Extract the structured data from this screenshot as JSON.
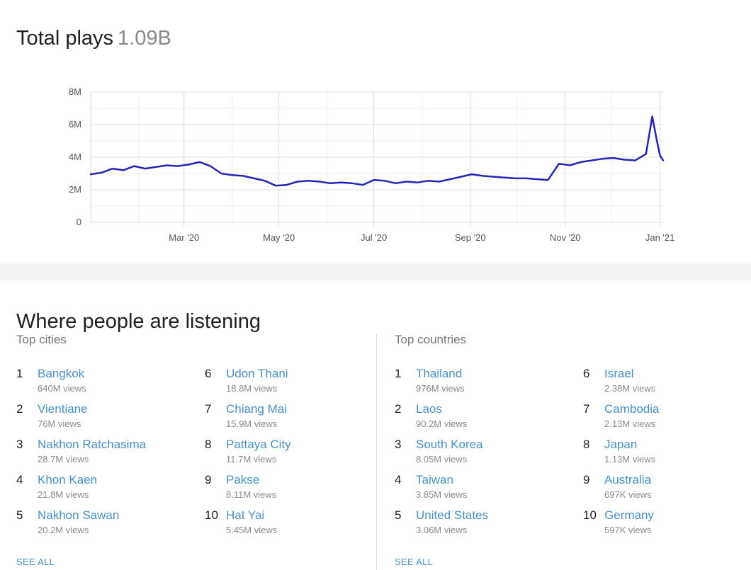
{
  "plays": {
    "label": "Total plays",
    "value": "1.09B"
  },
  "chart_data": {
    "type": "line",
    "y_ticks": [
      "0",
      "2M",
      "4M",
      "6M",
      "8M"
    ],
    "ylim": [
      0,
      8000000
    ],
    "x_ticks": [
      "Mar '20",
      "May '20",
      "Jul '20",
      "Sep '20",
      "Nov '20",
      "Jan '21"
    ],
    "x_tick_dates": [
      "2020-03-01",
      "2020-05-01",
      "2020-07-01",
      "2020-09-01",
      "2020-11-01",
      "2021-01-01"
    ],
    "xlim": [
      "2020-01-01",
      "2021-01-03"
    ],
    "color": "#2424b8",
    "grid": true,
    "series": [
      {
        "x": [
          "2020-01-01",
          "2020-01-08",
          "2020-01-15",
          "2020-01-22",
          "2020-01-29",
          "2020-02-05",
          "2020-02-12",
          "2020-02-19",
          "2020-02-26",
          "2020-03-04",
          "2020-03-11",
          "2020-03-18",
          "2020-03-25",
          "2020-04-01",
          "2020-04-08",
          "2020-04-15",
          "2020-04-22",
          "2020-04-29",
          "2020-05-06",
          "2020-05-13",
          "2020-05-20",
          "2020-05-27",
          "2020-06-03",
          "2020-06-10",
          "2020-06-17",
          "2020-06-24",
          "2020-07-01",
          "2020-07-08",
          "2020-07-15",
          "2020-07-22",
          "2020-07-29",
          "2020-08-05",
          "2020-08-12",
          "2020-08-19",
          "2020-08-26",
          "2020-09-02",
          "2020-09-09",
          "2020-09-16",
          "2020-09-23",
          "2020-09-30",
          "2020-10-07",
          "2020-10-14",
          "2020-10-21",
          "2020-10-28",
          "2020-11-04",
          "2020-11-11",
          "2020-11-18",
          "2020-11-25",
          "2020-12-02",
          "2020-12-09",
          "2020-12-16",
          "2020-12-23",
          "2020-12-27",
          "2020-12-30",
          "2021-01-01",
          "2021-01-03"
        ],
        "y": [
          2950000,
          3050000,
          3300000,
          3200000,
          3450000,
          3300000,
          3400000,
          3500000,
          3450000,
          3550000,
          3700000,
          3450000,
          3000000,
          2900000,
          2850000,
          2700000,
          2550000,
          2250000,
          2300000,
          2500000,
          2550000,
          2500000,
          2400000,
          2450000,
          2400000,
          2300000,
          2600000,
          2550000,
          2400000,
          2500000,
          2450000,
          2550000,
          2500000,
          2650000,
          2800000,
          2950000,
          2850000,
          2800000,
          2750000,
          2700000,
          2700000,
          2650000,
          2600000,
          3600000,
          3500000,
          3700000,
          3800000,
          3900000,
          3950000,
          3850000,
          3800000,
          4200000,
          6500000,
          5000000,
          4100000,
          3800000
        ]
      }
    ]
  },
  "where": {
    "title": "Where people are listening",
    "cities_title": "Top cities",
    "countries_title": "Top countries",
    "see_all": "SEE ALL",
    "cities": [
      {
        "rank": "1",
        "name": "Bangkok",
        "views": "640M views"
      },
      {
        "rank": "2",
        "name": "Vientiane",
        "views": "76M views"
      },
      {
        "rank": "3",
        "name": "Nakhon Ratchasima",
        "views": "28.7M views"
      },
      {
        "rank": "4",
        "name": "Khon Kaen",
        "views": "21.8M views"
      },
      {
        "rank": "5",
        "name": "Nakhon Sawan",
        "views": "20.2M views"
      },
      {
        "rank": "6",
        "name": "Udon Thani",
        "views": "18.8M views"
      },
      {
        "rank": "7",
        "name": "Chiang Mai",
        "views": "15.9M views"
      },
      {
        "rank": "8",
        "name": "Pattaya City",
        "views": "11.7M views"
      },
      {
        "rank": "9",
        "name": "Pakse",
        "views": "8.11M views"
      },
      {
        "rank": "10",
        "name": "Hat Yai",
        "views": "5.45M views"
      }
    ],
    "countries": [
      {
        "rank": "1",
        "name": "Thailand",
        "views": "976M views"
      },
      {
        "rank": "2",
        "name": "Laos",
        "views": "90.2M views"
      },
      {
        "rank": "3",
        "name": "South Korea",
        "views": "8.05M views"
      },
      {
        "rank": "4",
        "name": "Taiwan",
        "views": "3.85M views"
      },
      {
        "rank": "5",
        "name": "United States",
        "views": "3.06M views"
      },
      {
        "rank": "6",
        "name": "Israel",
        "views": "2.38M views"
      },
      {
        "rank": "7",
        "name": "Cambodia",
        "views": "2.13M views"
      },
      {
        "rank": "8",
        "name": "Japan",
        "views": "1.13M views"
      },
      {
        "rank": "9",
        "name": "Australia",
        "views": "697K views"
      },
      {
        "rank": "10",
        "name": "Germany",
        "views": "597K views"
      }
    ]
  }
}
